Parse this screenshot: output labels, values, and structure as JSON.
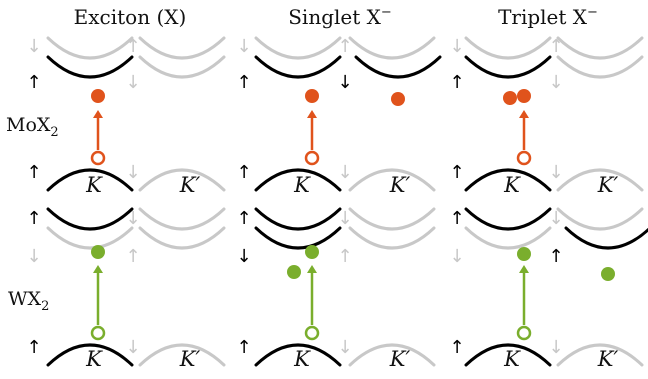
{
  "columns": [
    {
      "title": "Exciton (X)",
      "title_main": "Exciton (X)",
      "title_sup": ""
    },
    {
      "title": "Singlet X⁻",
      "title_main": "Singlet X",
      "title_sup": "−"
    },
    {
      "title": "Triplet X⁻",
      "title_main": "Triplet X",
      "title_sup": "−"
    }
  ],
  "rows": [
    {
      "label": "MoX2",
      "label_main": "MoX",
      "label_sub": "2"
    },
    {
      "label": "WX2",
      "label_main": "WX",
      "label_sub": "2"
    }
  ],
  "valley_labels": {
    "k": "K",
    "kprime": "K′"
  },
  "spin_glyphs": {
    "up": "↑",
    "down": "↓"
  },
  "colors": {
    "band_black": "#000000",
    "band_gray": "#c8c8c8",
    "spin_gray": "#c8c8c8",
    "mox2_accent": "#e0531c",
    "wx2_accent": "#7aae2d"
  }
}
